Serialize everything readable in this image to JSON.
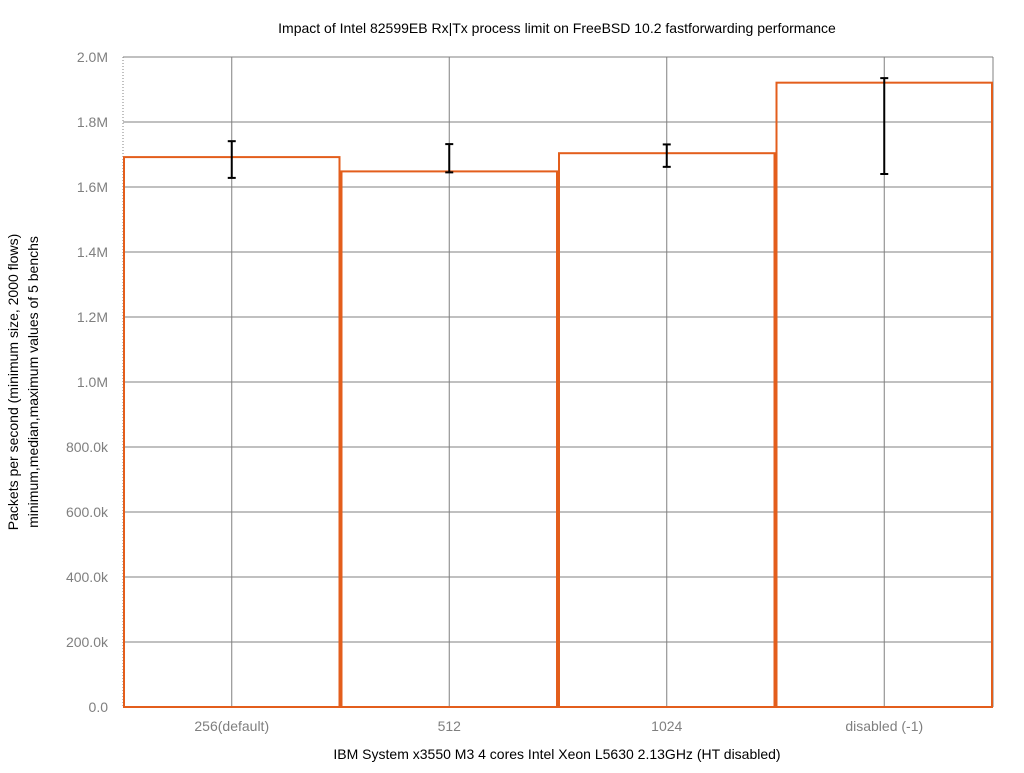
{
  "chart_data": {
    "type": "bar",
    "title": "Impact of Intel 82599EB Rx|Tx process limit on FreeBSD 10.2 fastforwarding performance",
    "xlabel": "IBM System x3550 M3 4 cores Intel Xeon L5630 2.13GHz (HT disabled)",
    "ylabel": "Packets per second (minimum size, 2000 flows)",
    "ylabel2": "minimum,median,maximum values of 5 benchs",
    "categories": [
      "256(default)",
      "512",
      "1024",
      "disabled (-1)"
    ],
    "values": [
      1692000,
      1648000,
      1704000,
      1921000
    ],
    "error_min": [
      1628000,
      1645000,
      1662000,
      1640000
    ],
    "error_max": [
      1741000,
      1732000,
      1731000,
      1935000
    ],
    "ylim": [
      0,
      2000000
    ],
    "yticks": [
      0,
      200000,
      400000,
      600000,
      800000,
      1000000,
      1200000,
      1400000,
      1600000,
      1800000,
      2000000
    ],
    "ytick_labels": [
      "0.0",
      "200.0k",
      "400.0k",
      "600.0k",
      "800.0k",
      "1.0M",
      "1.2M",
      "1.4M",
      "1.6M",
      "1.8M",
      "2.0M"
    ],
    "grid": true,
    "colors": {
      "bar": "#e35e1c",
      "error": "#000000",
      "grid": "#808080"
    }
  }
}
